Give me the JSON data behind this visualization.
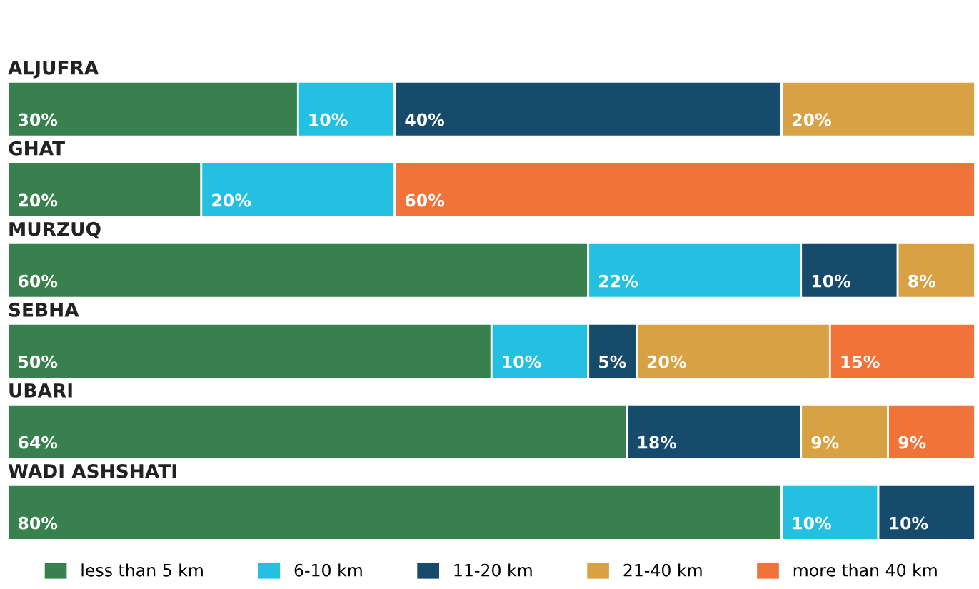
{
  "chart_data": {
    "type": "bar",
    "orientation": "horizontal",
    "stacked": true,
    "categories": [
      "ALJUFRA",
      "GHAT",
      "MURZUQ",
      "SEBHA",
      "UBARI",
      "WADI ASHSHATI"
    ],
    "legend": "bottom",
    "series": [
      {
        "name": "less than 5 km",
        "color": "#38814e",
        "values": [
          30,
          20,
          60,
          50,
          64,
          80
        ],
        "value_labels": [
          "30%",
          "20%",
          "60%",
          "50%",
          "64%",
          "80%"
        ]
      },
      {
        "name": "6-10 km",
        "color": "#23c0e2",
        "values": [
          10,
          20,
          22,
          10,
          null,
          10
        ],
        "value_labels": [
          "10%",
          "20%",
          "22%",
          "10%",
          null,
          "10%"
        ]
      },
      {
        "name": "11-20 km",
        "color": "#174b6b",
        "values": [
          40,
          null,
          10,
          5,
          18,
          10
        ],
        "value_labels": [
          "40%",
          null,
          "10%",
          "5%",
          "18%",
          "10%"
        ]
      },
      {
        "name": "21-40 km",
        "color": "#d8a244",
        "values": [
          20,
          null,
          8,
          20,
          9,
          null
        ],
        "value_labels": [
          "20%",
          null,
          "8%",
          "20%",
          "9%",
          null
        ]
      },
      {
        "name": "more than 40 km",
        "color": "#f2733a",
        "values": [
          null,
          60,
          null,
          15,
          9,
          null
        ],
        "value_labels": [
          null,
          "60%",
          null,
          "15%",
          "9%",
          null
        ]
      }
    ]
  }
}
